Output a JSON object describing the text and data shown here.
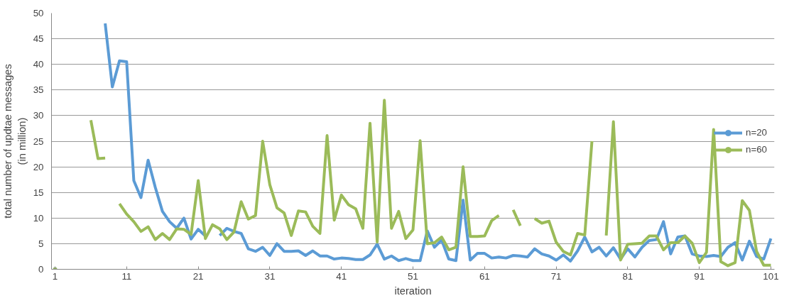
{
  "chart_data": {
    "type": "line",
    "xlabel": "iteration",
    "ylabel": "total number of updtae messages\n(in million)",
    "x": [
      1,
      2,
      3,
      4,
      5,
      6,
      7,
      8,
      9,
      10,
      11,
      12,
      13,
      14,
      15,
      16,
      17,
      18,
      19,
      20,
      21,
      22,
      23,
      24,
      25,
      26,
      27,
      28,
      29,
      30,
      31,
      32,
      33,
      34,
      35,
      36,
      37,
      38,
      39,
      40,
      41,
      42,
      43,
      44,
      45,
      46,
      47,
      48,
      49,
      50,
      51,
      52,
      53,
      54,
      55,
      56,
      57,
      58,
      59,
      60,
      61,
      62,
      63,
      64,
      65,
      66,
      67,
      68,
      69,
      70,
      71,
      72,
      73,
      74,
      75,
      76,
      77,
      78,
      79,
      80,
      81,
      82,
      83,
      84,
      85,
      86,
      87,
      88,
      89,
      90,
      91,
      92,
      93,
      94,
      95,
      96,
      97,
      98,
      99,
      100,
      101
    ],
    "xlim": [
      0.5,
      101.5
    ],
    "xticks": [
      1,
      11,
      21,
      31,
      41,
      51,
      61,
      71,
      81,
      91,
      101
    ],
    "ylim": [
      0,
      50
    ],
    "yticks": [
      0,
      5,
      10,
      15,
      20,
      25,
      30,
      35,
      40,
      45,
      50
    ],
    "grid": "y",
    "legend": "right",
    "marker": "none",
    "line_style": "solid",
    "series": [
      {
        "name": "n=20",
        "color": "#5b9bd5",
        "values": [
          0,
          null,
          null,
          null,
          null,
          null,
          null,
          48,
          35.6,
          40.7,
          40.5,
          17.3,
          14,
          21.3,
          16,
          11.3,
          9.3,
          8,
          10,
          5.9,
          7.8,
          6.5,
          null,
          6.6,
          8,
          7.4,
          7,
          4,
          3.5,
          4.3,
          2.7,
          5,
          3.5,
          3.5,
          3.6,
          2.7,
          3.6,
          2.6,
          2.6,
          2,
          2.2,
          2.1,
          1.9,
          1.9,
          2.8,
          4.9,
          2,
          2.6,
          1.7,
          2.1,
          1.7,
          1.7,
          7.5,
          4.3,
          5.7,
          2,
          1.7,
          13.5,
          1.8,
          3.1,
          3.1,
          2.2,
          2.4,
          2.2,
          2.7,
          2.6,
          2.4,
          4,
          3,
          2.6,
          1.8,
          2.8,
          1.6,
          3.6,
          6.3,
          3.4,
          4.3,
          2.6,
          4.2,
          2,
          4,
          2.4,
          4.3,
          5.6,
          5.8,
          9.3,
          3,
          6.3,
          6.5,
          3,
          2.6,
          2.5,
          2.7,
          2.5,
          4.3,
          5.2,
          1.8,
          5.5,
          2.5,
          2,
          6
        ]
      },
      {
        "name": "n=60",
        "color": "#9bbb59",
        "values": [
          0,
          null,
          null,
          null,
          null,
          29.1,
          21.6,
          21.7,
          null,
          12.8,
          10.8,
          9.3,
          7.4,
          8.3,
          5.8,
          7,
          5.8,
          7.9,
          7.8,
          6.8,
          17.3,
          6,
          8.7,
          7.9,
          5.8,
          7.3,
          13.2,
          9.8,
          10.5,
          25,
          16.5,
          12,
          11,
          6.6,
          11.4,
          11.2,
          8.4,
          7,
          26.1,
          9.6,
          14.5,
          12.6,
          11.8,
          8,
          28.5,
          5.3,
          33,
          8,
          11.3,
          6,
          7.7,
          25.1,
          5,
          5.2,
          6.3,
          3.8,
          4.3,
          20,
          6.4,
          6.4,
          6.5,
          9.5,
          10.5,
          null,
          11.6,
          8.5,
          null,
          9.9,
          9,
          9.4,
          5.3,
          3.5,
          2.8,
          7,
          6.7,
          25,
          null,
          6.6,
          28.8,
          1.8,
          4.9,
          5,
          5.1,
          6.5,
          6.5,
          3.8,
          5.2,
          5.2,
          6.5,
          5.1,
          1.3,
          3.3,
          27.3,
          1.5,
          0.7,
          1.3,
          13.4,
          11.5,
          3.5,
          0.8,
          0.8
        ]
      }
    ]
  }
}
